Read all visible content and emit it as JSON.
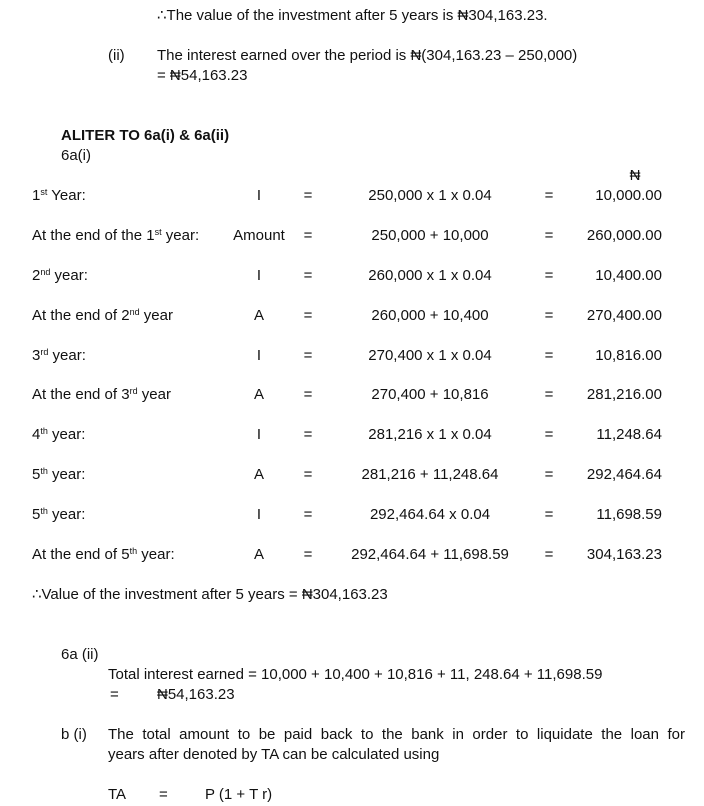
{
  "header": {
    "conclusion": "∴The value of the investment after 5 years is ₦304,163.23.",
    "part_ii_label": "(ii)",
    "part_ii_text": "The interest earned over the period is ₦(304,163.23 – 250,000)",
    "part_ii_result": "= ₦54,163.23"
  },
  "aliter": {
    "title": "ALITER TO 6a(i) & 6a(ii)",
    "subtitle": "6a(i)",
    "currency": "₦",
    "rows": [
      {
        "label": {
          "pre": "1",
          "sup": "st",
          "post": " Year:"
        },
        "symbol": "I",
        "eq1": "=",
        "expr": "250,000 x 1 x 0.04",
        "eq2": "=",
        "result": "10,000.00"
      },
      {
        "label": {
          "pre": "At the end of the 1",
          "sup": "st",
          "post": " year:"
        },
        "symbol": "Amount",
        "eq1": "=",
        "expr": "250,000 + 10,000",
        "eq2": "=",
        "result": "260,000.00"
      },
      {
        "label": {
          "pre": "2",
          "sup": "nd",
          "post": " year:"
        },
        "symbol": "I",
        "eq1": "=",
        "expr": "260,000 x 1 x 0.04",
        "eq2": "=",
        "result": "10,400.00"
      },
      {
        "label": {
          "pre": "At the end of 2",
          "sup": "nd",
          "post": " year"
        },
        "symbol": "A",
        "eq1": "=",
        "expr": "260,000 + 10,400",
        "eq2": "=",
        "result": "270,400.00"
      },
      {
        "label": {
          "pre": "3",
          "sup": "rd",
          "post": " year:"
        },
        "symbol": "I",
        "eq1": "=",
        "expr": "270,400 x 1 x 0.04",
        "eq2": "=",
        "result": "10,816.00"
      },
      {
        "label": {
          "pre": "At the end of 3",
          "sup": "rd",
          "post": " year"
        },
        "symbol": "A",
        "eq1": "=",
        "expr": "270,400 + 10,816",
        "eq2": "=",
        "result": "281,216.00"
      },
      {
        "label": {
          "pre": "4",
          "sup": "th",
          "post": " year:"
        },
        "symbol": "I",
        "eq1": "=",
        "expr": "281,216 x 1 x 0.04",
        "eq2": "=",
        "result": "11,248.64"
      },
      {
        "label": {
          "pre": "5",
          "sup": "th",
          "post": " year:"
        },
        "symbol": "A",
        "eq1": "=",
        "expr": "281,216 + 11,248.64",
        "eq2": "=",
        "result": "292,464.64"
      },
      {
        "label": {
          "pre": "5",
          "sup": "th",
          "post": " year:"
        },
        "symbol": "I",
        "eq1": "=",
        "expr": "292,464.64 x 0.04",
        "eq2": "=",
        "result": "11,698.59"
      },
      {
        "label": {
          "pre": "At the end of 5",
          "sup": "th",
          "post": " year:"
        },
        "symbol": "A",
        "eq1": "=",
        "expr": "292,464.64 + 11,698.59",
        "eq2": "=",
        "result": "304,163.23"
      }
    ],
    "conclusion": "∴Value of the investment after 5 years = ₦304,163.23"
  },
  "part_6a_ii": {
    "label": "6a (ii)",
    "line1": "Total interest earned = 10,000 + 10,400 + 10,816 + 11, 248.64 + 11,698.59",
    "eq": "=",
    "result": "₦54,163.23"
  },
  "part_b_i": {
    "label": "b (i)",
    "line1": "The total amount to be paid back to the bank in order to liquidate the loan for",
    "line2": "years after denoted by TA can be calculated using",
    "formula_lhs": "TA",
    "formula_eq": "=",
    "formula_rhs": "P (1 + T r)"
  }
}
